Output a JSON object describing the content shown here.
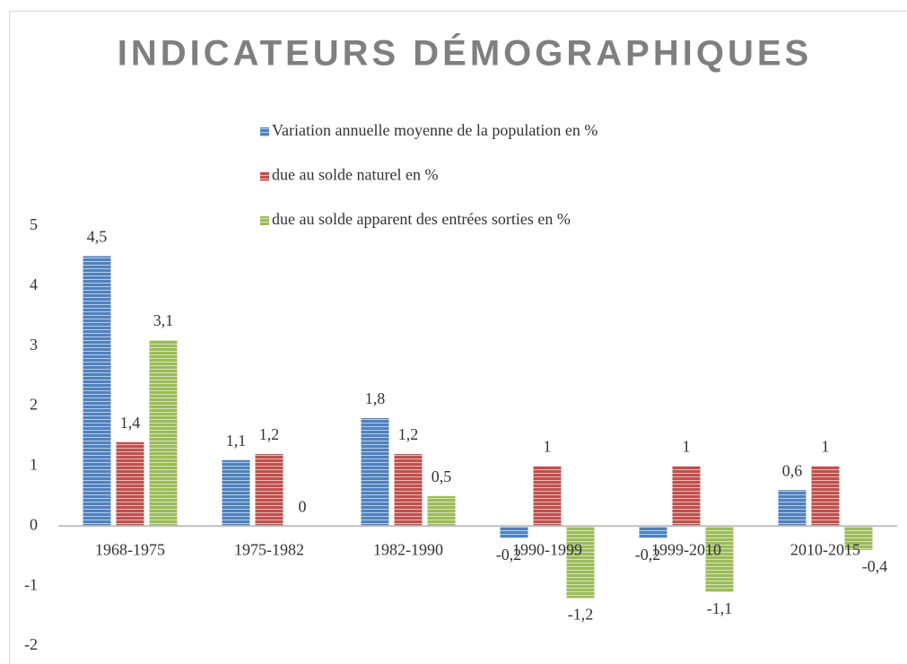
{
  "chart_data": {
    "type": "bar",
    "title": "INDICATEURS DÉMOGRAPHIQUES",
    "categories": [
      "1968-1975",
      "1975-1982",
      "1982-1990",
      "1990-1999",
      "1999-2010",
      "2010-2015"
    ],
    "series": [
      {
        "name": "Variation annuelle moyenne de la population en %",
        "color": "#4f81bd",
        "values": [
          4.5,
          1.1,
          1.8,
          -0.2,
          -0.2,
          0.6
        ],
        "value_labels": [
          "4,5",
          "1,1",
          "1,8",
          "-0,2",
          "-0,2",
          "0,6"
        ]
      },
      {
        "name": "due au solde naturel en %",
        "color": "#c0504d",
        "values": [
          1.4,
          1.2,
          1.2,
          1,
          1,
          1
        ],
        "value_labels": [
          "1,4",
          "1,2",
          "1,2",
          "1",
          "1",
          "1"
        ]
      },
      {
        "name": "due au solde apparent des entrées sorties en %",
        "color": "#9bbb59",
        "values": [
          3.1,
          0,
          0.5,
          -1.2,
          -1.1,
          -0.4
        ],
        "value_labels": [
          "3,1",
          "0",
          "0,5",
          "-1,2",
          "-1,1",
          "-0,4"
        ]
      }
    ],
    "ylim": [
      -2,
      5
    ],
    "yticks": [
      -2,
      -1,
      0,
      1,
      2,
      3,
      4,
      5
    ]
  }
}
